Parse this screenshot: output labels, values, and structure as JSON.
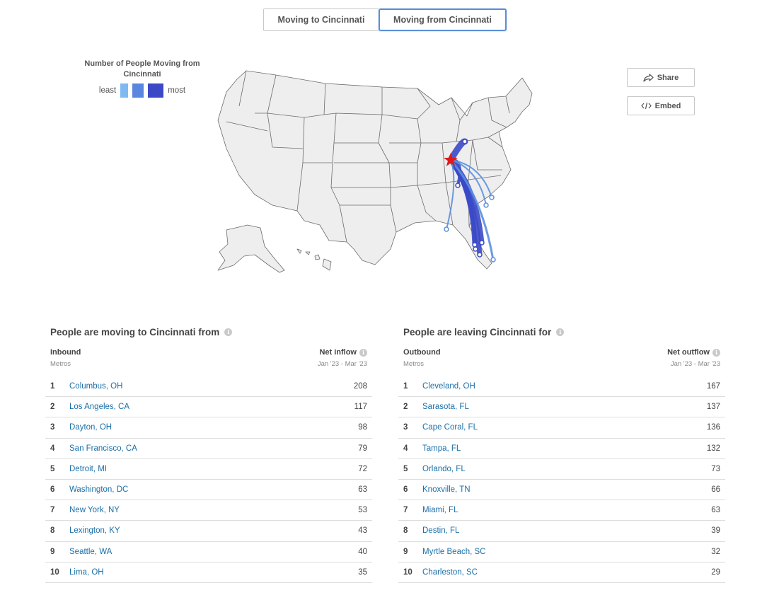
{
  "toggle": {
    "inbound_label": "Moving to Cincinnati",
    "outbound_label": "Moving from Cincinnati",
    "active": "outbound"
  },
  "legend": {
    "title": "Number of People Moving from Cincinnati",
    "least": "least",
    "most": "most",
    "colors": [
      "#7fb9f2",
      "#5b86e0",
      "#3b49c7"
    ]
  },
  "actions": {
    "share_label": "Share",
    "embed_label": "Embed"
  },
  "map": {
    "origin_color": "#e01a1a",
    "flow_color": "#3b49c7",
    "flow_light_color": "#5b8fe0"
  },
  "inbound": {
    "title": "People are moving to Cincinnati from",
    "col_left": "Inbound",
    "col_left_sub": "Metros",
    "col_right": "Net inflow",
    "col_right_sub": "Jan '23 - Mar '23",
    "rows": [
      {
        "rank": "1",
        "city": "Columbus, OH",
        "value": "208"
      },
      {
        "rank": "2",
        "city": "Los Angeles, CA",
        "value": "117"
      },
      {
        "rank": "3",
        "city": "Dayton, OH",
        "value": "98"
      },
      {
        "rank": "4",
        "city": "San Francisco, CA",
        "value": "79"
      },
      {
        "rank": "5",
        "city": "Detroit, MI",
        "value": "72"
      },
      {
        "rank": "6",
        "city": "Washington, DC",
        "value": "63"
      },
      {
        "rank": "7",
        "city": "New York, NY",
        "value": "53"
      },
      {
        "rank": "8",
        "city": "Lexington, KY",
        "value": "43"
      },
      {
        "rank": "9",
        "city": "Seattle, WA",
        "value": "40"
      },
      {
        "rank": "10",
        "city": "Lima, OH",
        "value": "35"
      }
    ]
  },
  "outbound": {
    "title": "People are leaving Cincinnati for",
    "col_left": "Outbound",
    "col_left_sub": "Metros",
    "col_right": "Net outflow",
    "col_right_sub": "Jan '23 - Mar '23",
    "rows": [
      {
        "rank": "1",
        "city": "Cleveland, OH",
        "value": "167"
      },
      {
        "rank": "2",
        "city": "Sarasota, FL",
        "value": "137"
      },
      {
        "rank": "3",
        "city": "Cape Coral, FL",
        "value": "136"
      },
      {
        "rank": "4",
        "city": "Tampa, FL",
        "value": "132"
      },
      {
        "rank": "5",
        "city": "Orlando, FL",
        "value": "73"
      },
      {
        "rank": "6",
        "city": "Knoxville, TN",
        "value": "66"
      },
      {
        "rank": "7",
        "city": "Miami, FL",
        "value": "63"
      },
      {
        "rank": "8",
        "city": "Destin, FL",
        "value": "39"
      },
      {
        "rank": "9",
        "city": "Myrtle Beach, SC",
        "value": "32"
      },
      {
        "rank": "10",
        "city": "Charleston, SC",
        "value": "29"
      }
    ]
  }
}
